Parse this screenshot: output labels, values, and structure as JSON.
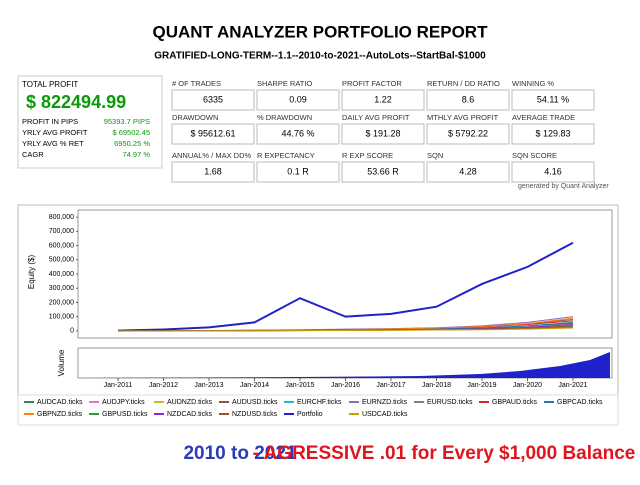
{
  "header": {
    "title": "QUANT ANALYZER PORTFOLIO REPORT",
    "subtitle": "GRATIFIED-LONG-TERM--1.1--2010-to-2021--AutoLots--StartBal-$1000"
  },
  "summary": {
    "label": "TOTAL PROFIT",
    "value": "$ 822494.99",
    "rows": [
      [
        "PROFIT IN PIPS",
        "95393.7 PIPS"
      ],
      [
        "YRLY AVG PROFIT",
        "$ 69502.45"
      ],
      [
        "YRLY AVG % RET",
        "6950.25 %"
      ],
      [
        "CAGR",
        "74.97 %"
      ]
    ]
  },
  "stats": [
    [
      [
        "# OF TRADES",
        "6335"
      ],
      [
        "SHARPE RATIO",
        "0.09"
      ],
      [
        "PROFIT FACTOR",
        "1.22"
      ],
      [
        "RETURN / DD RATIO",
        "8.6"
      ],
      [
        "WINNING %",
        "54.11 %"
      ]
    ],
    [
      [
        "DRAWDOWN",
        "$ 95612.61"
      ],
      [
        "% DRAWDOWN",
        "44.76 %"
      ],
      [
        "DAILY AVG PROFIT",
        "$ 191.28"
      ],
      [
        "MTHLY AVG PROFIT",
        "$ 5792.22"
      ],
      [
        "AVERAGE TRADE",
        "$ 129.83"
      ]
    ],
    [
      [
        "ANNUAL% / MAX DD%",
        "1.68"
      ],
      [
        "R EXPECTANCY",
        "0.1 R"
      ],
      [
        "R EXP SCORE",
        "53.66 R"
      ],
      [
        "SQN",
        "4.28"
      ],
      [
        "SQN SCORE",
        "4.16"
      ]
    ]
  ],
  "generated": "generated by Quant Analyzer",
  "chart_data": {
    "type": "line",
    "y_label": "Equity ($)",
    "volume_label": "Volume",
    "x": [
      "Jan-2011",
      "Jan-2012",
      "Jan-2013",
      "Jan-2014",
      "Jan-2015",
      "Jan-2016",
      "Jan-2017",
      "Jan-2018",
      "Jan-2019",
      "Jan-2020",
      "Jan-2021"
    ],
    "ylim": [
      -50000,
      850000
    ],
    "yticks": [
      0,
      {
        "value": 100000,
        "label": "100,000"
      },
      {
        "value": 200000,
        "label": "200,000"
      },
      {
        "value": 300000,
        "label": "300,000"
      },
      {
        "value": 400000,
        "label": "400,000"
      },
      {
        "value": 500000,
        "label": "500,000"
      },
      {
        "value": 600000,
        "label": "600,000"
      },
      {
        "value": 700000,
        "label": "700,000"
      },
      {
        "value": 800000,
        "label": "800,000"
      }
    ],
    "series": [
      {
        "name": "AUDCAD.ticks",
        "color": "#2e8b57",
        "values": [
          0,
          1000,
          2000,
          3000,
          5000,
          8000,
          10000,
          15000,
          20000,
          35000,
          60000
        ]
      },
      {
        "name": "AUDJPY.ticks",
        "color": "#e377c2",
        "values": [
          0,
          500,
          1500,
          2500,
          4000,
          6000,
          9000,
          12000,
          18000,
          30000,
          50000
        ]
      },
      {
        "name": "AUDNZD.ticks",
        "color": "#bcbd22",
        "values": [
          0,
          0,
          1000,
          2000,
          3000,
          4000,
          6000,
          9000,
          15000,
          25000,
          40000
        ]
      },
      {
        "name": "AUDUSD.ticks",
        "color": "#8c564b",
        "values": [
          0,
          1000,
          2000,
          4000,
          7000,
          10000,
          14000,
          20000,
          30000,
          50000,
          80000
        ]
      },
      {
        "name": "EURCHF.ticks",
        "color": "#17becf",
        "values": [
          0,
          500,
          1000,
          2000,
          3000,
          5000,
          7000,
          10000,
          14000,
          20000,
          30000
        ]
      },
      {
        "name": "EURNZD.ticks",
        "color": "#9467bd",
        "values": [
          0,
          1000,
          3000,
          5000,
          8000,
          12000,
          16000,
          22000,
          35000,
          60000,
          100000
        ]
      },
      {
        "name": "EURUSD.ticks",
        "color": "#7f7f7f",
        "values": [
          0,
          -500,
          0,
          1000,
          2000,
          4000,
          5000,
          8000,
          10000,
          15000,
          25000
        ]
      },
      {
        "name": "GBPAUD.ticks",
        "color": "#d62728",
        "values": [
          0,
          1000,
          2000,
          4000,
          6000,
          9000,
          12000,
          18000,
          28000,
          45000,
          70000
        ]
      },
      {
        "name": "GBPCAD.ticks",
        "color": "#1f77b4",
        "values": [
          0,
          500,
          1500,
          3000,
          5000,
          7000,
          10000,
          14000,
          20000,
          35000,
          55000
        ]
      },
      {
        "name": "GBPNZD.ticks",
        "color": "#ff7f0e",
        "values": [
          0,
          1000,
          2000,
          3000,
          6000,
          9000,
          13000,
          20000,
          30000,
          50000,
          90000
        ]
      },
      {
        "name": "GBPUSD.ticks",
        "color": "#2ca02c",
        "values": [
          0,
          500,
          1000,
          2000,
          3000,
          5000,
          7000,
          9000,
          12000,
          18000,
          30000
        ]
      },
      {
        "name": "NZDCAD.ticks",
        "color": "#8a2be2",
        "values": [
          0,
          0,
          1000,
          2000,
          3000,
          5000,
          8000,
          10000,
          15000,
          25000,
          45000
        ]
      },
      {
        "name": "NZDUSD.ticks",
        "color": "#a0522d",
        "values": [
          0,
          500,
          1000,
          1500,
          2500,
          4000,
          6000,
          9000,
          13000,
          20000,
          35000
        ]
      },
      {
        "name": "Portfolio",
        "color": "#1f22c8",
        "values": [
          2000,
          10000,
          25000,
          60000,
          230000,
          100000,
          120000,
          170000,
          330000,
          450000,
          620000
        ]
      },
      {
        "name": "USDCAD.ticks",
        "color": "#c8a000",
        "values": [
          0,
          0,
          500,
          1000,
          2000,
          3000,
          4000,
          6000,
          8000,
          12000,
          20000
        ]
      }
    ]
  },
  "caption": {
    "part1": "2010 to 2021",
    "part2": "- AGRESSIVE .01 for Every $1,000 Balance"
  }
}
